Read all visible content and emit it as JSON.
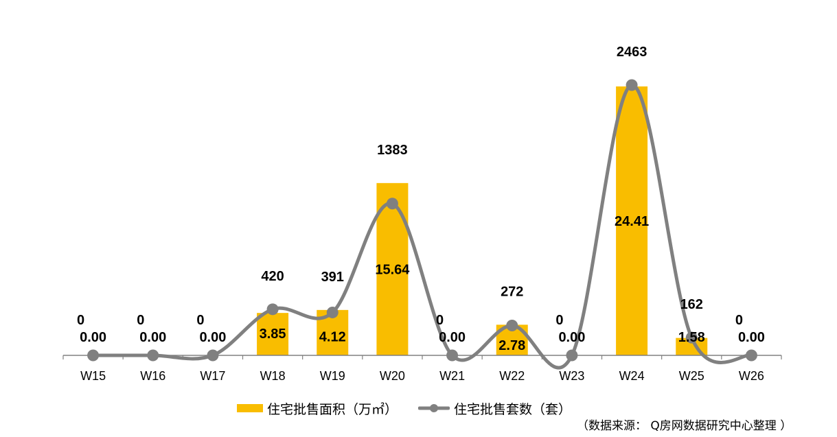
{
  "chart_data": {
    "type": "bar",
    "categories": [
      "W15",
      "W16",
      "W17",
      "W18",
      "W19",
      "W20",
      "W21",
      "W22",
      "W23",
      "W24",
      "W25",
      "W26"
    ],
    "series": [
      {
        "name": "住宅批售面积（万㎡）",
        "type": "bar",
        "values": [
          0.0,
          0.0,
          0.0,
          3.85,
          4.12,
          15.64,
          0.0,
          2.78,
          0.0,
          24.41,
          1.58,
          0.0
        ],
        "labels": [
          "0.00",
          "0.00",
          "0.00",
          "3.85",
          "4.12",
          "15.64",
          "0.00",
          "2.78",
          "0.00",
          "24.41",
          "1.58",
          "0.00"
        ]
      },
      {
        "name": "住宅批售套数（套）",
        "type": "line",
        "smooth": true,
        "values": [
          0,
          0,
          0,
          420,
          391,
          1383,
          0,
          272,
          0,
          2463,
          162,
          0
        ],
        "labels": [
          "0",
          "0",
          "0",
          "420",
          "391",
          "1383",
          "0",
          "272",
          "0",
          "2463",
          "162",
          "0"
        ]
      }
    ],
    "bar_ylim": [
      0,
      27.5
    ],
    "line_ylim": [
      0,
      2700
    ],
    "grid": false,
    "legend_position": "bottom",
    "colors": {
      "bar": "#F9BD00",
      "line": "#808080",
      "axis": "#808080",
      "text": "#000000"
    }
  },
  "legend": {
    "bar_label": "住宅批售面积（万㎡）",
    "line_label": "住宅批售套数（套）"
  },
  "source_note": "（数据来源： Q房网数据研究中心整理 ）"
}
